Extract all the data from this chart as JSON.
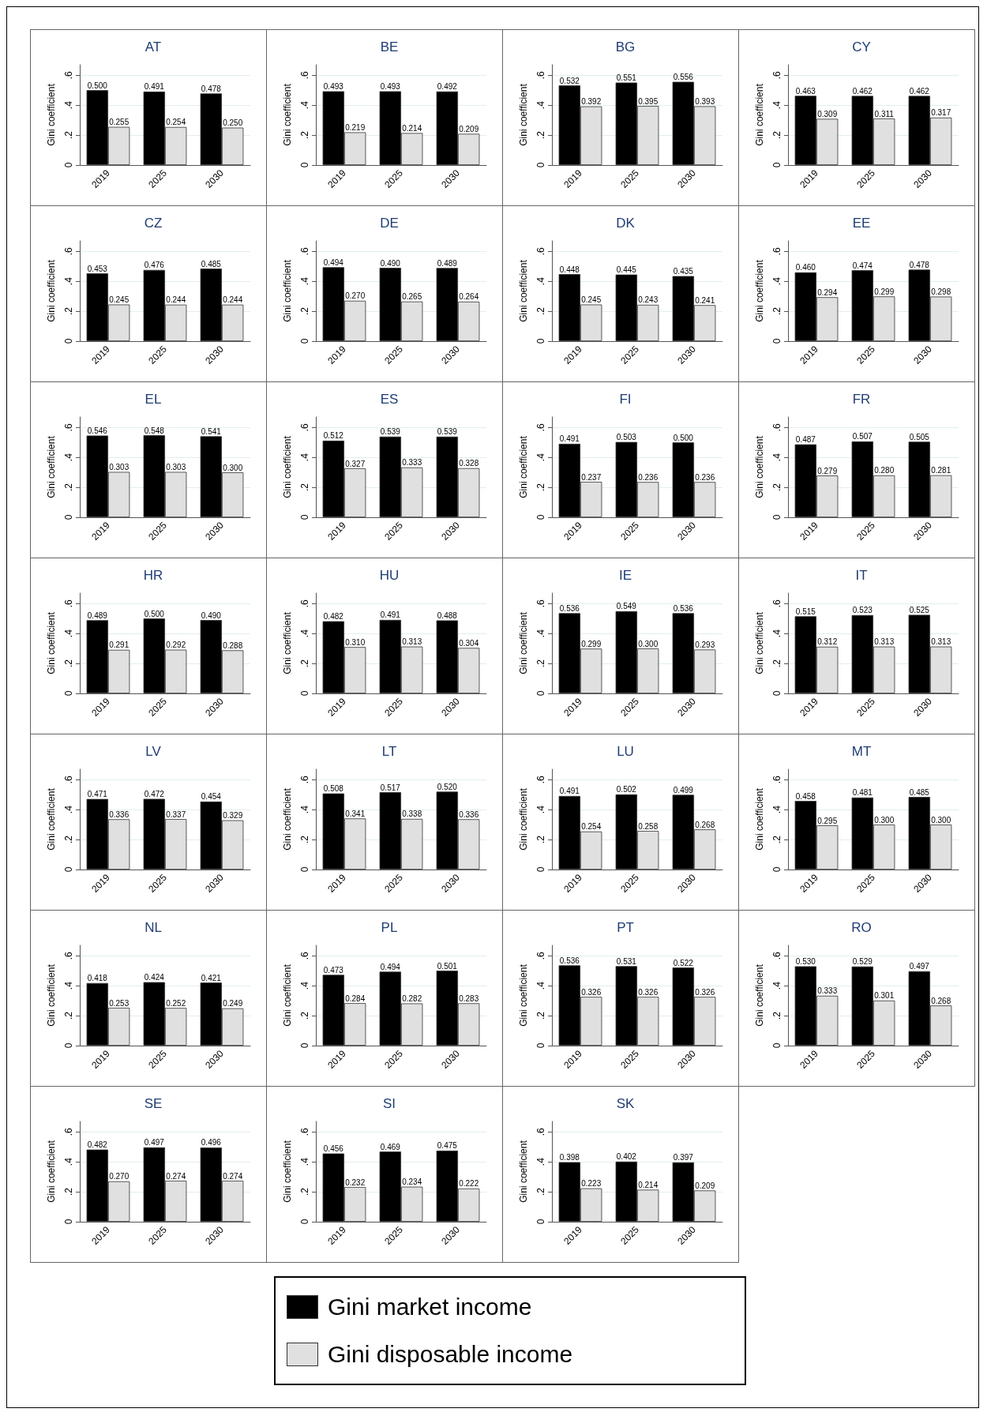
{
  "chart_data": [
    {
      "type": "bar",
      "title": "AT",
      "ylabel": "Gini coefficient",
      "categories": [
        "2019",
        "2025",
        "2030"
      ],
      "ylim": [
        0,
        0.67
      ],
      "yticks": [
        {
          "value": 0,
          "label": "0"
        },
        {
          "value": 0.2,
          "label": ".2"
        },
        {
          "value": 0.4,
          "label": ".4"
        },
        {
          "value": 0.6,
          "label": ".6"
        }
      ],
      "grid": "y",
      "series": [
        {
          "color": "#000000",
          "values": [
            0.5,
            0.491,
            0.478
          ],
          "value_labels": [
            "0.500",
            "0.491",
            "0.478"
          ]
        },
        {
          "color": "#e0e0e0",
          "values": [
            0.255,
            0.254,
            0.25
          ],
          "value_labels": [
            "0.255",
            "0.254",
            "0.250"
          ]
        }
      ]
    },
    {
      "type": "bar",
      "title": "BE",
      "ylabel": "Gini coefficient",
      "categories": [
        "2019",
        "2025",
        "2030"
      ],
      "ylim": [
        0,
        0.67
      ],
      "yticks": [
        {
          "value": 0,
          "label": "0"
        },
        {
          "value": 0.2,
          "label": ".2"
        },
        {
          "value": 0.4,
          "label": ".4"
        },
        {
          "value": 0.6,
          "label": ".6"
        }
      ],
      "grid": "y",
      "series": [
        {
          "color": "#000000",
          "values": [
            0.493,
            0.493,
            0.492
          ],
          "value_labels": [
            "0.493",
            "0.493",
            "0.492"
          ]
        },
        {
          "color": "#e0e0e0",
          "values": [
            0.219,
            0.214,
            0.209
          ],
          "value_labels": [
            "0.219",
            "0.214",
            "0.209"
          ]
        }
      ]
    },
    {
      "type": "bar",
      "title": "BG",
      "ylabel": "Gini coefficient",
      "categories": [
        "2019",
        "2025",
        "2030"
      ],
      "ylim": [
        0,
        0.67
      ],
      "yticks": [
        {
          "value": 0,
          "label": "0"
        },
        {
          "value": 0.2,
          "label": ".2"
        },
        {
          "value": 0.4,
          "label": ".4"
        },
        {
          "value": 0.6,
          "label": ".6"
        }
      ],
      "grid": "y",
      "series": [
        {
          "color": "#000000",
          "values": [
            0.532,
            0.551,
            0.556
          ],
          "value_labels": [
            "0.532",
            "0.551",
            "0.556"
          ]
        },
        {
          "color": "#e0e0e0",
          "values": [
            0.392,
            0.395,
            0.393
          ],
          "value_labels": [
            "0.392",
            "0.395",
            "0.393"
          ]
        }
      ]
    },
    {
      "type": "bar",
      "title": "CY",
      "ylabel": "Gini coefficient",
      "categories": [
        "2019",
        "2025",
        "2030"
      ],
      "ylim": [
        0,
        0.67
      ],
      "yticks": [
        {
          "value": 0,
          "label": "0"
        },
        {
          "value": 0.2,
          "label": ".2"
        },
        {
          "value": 0.4,
          "label": ".4"
        },
        {
          "value": 0.6,
          "label": ".6"
        }
      ],
      "grid": "y",
      "series": [
        {
          "color": "#000000",
          "values": [
            0.463,
            0.462,
            0.462
          ],
          "value_labels": [
            "0.463",
            "0.462",
            "0.462"
          ]
        },
        {
          "color": "#e0e0e0",
          "values": [
            0.309,
            0.311,
            0.317
          ],
          "value_labels": [
            "0.309",
            "0.311",
            "0.317"
          ]
        }
      ]
    },
    {
      "type": "bar",
      "title": "CZ",
      "ylabel": "Gini coefficient",
      "categories": [
        "2019",
        "2025",
        "2030"
      ],
      "ylim": [
        0,
        0.67
      ],
      "yticks": [
        {
          "value": 0,
          "label": "0"
        },
        {
          "value": 0.2,
          "label": ".2"
        },
        {
          "value": 0.4,
          "label": ".4"
        },
        {
          "value": 0.6,
          "label": ".6"
        }
      ],
      "grid": "y",
      "series": [
        {
          "color": "#000000",
          "values": [
            0.453,
            0.476,
            0.485
          ],
          "value_labels": [
            "0.453",
            "0.476",
            "0.485"
          ]
        },
        {
          "color": "#e0e0e0",
          "values": [
            0.245,
            0.244,
            0.244
          ],
          "value_labels": [
            "0.245",
            "0.244",
            "0.244"
          ]
        }
      ]
    },
    {
      "type": "bar",
      "title": "DE",
      "ylabel": "Gini coefficient",
      "categories": [
        "2019",
        "2025",
        "2030"
      ],
      "ylim": [
        0,
        0.67
      ],
      "yticks": [
        {
          "value": 0,
          "label": "0"
        },
        {
          "value": 0.2,
          "label": ".2"
        },
        {
          "value": 0.4,
          "label": ".4"
        },
        {
          "value": 0.6,
          "label": ".6"
        }
      ],
      "grid": "y",
      "series": [
        {
          "color": "#000000",
          "values": [
            0.494,
            0.49,
            0.489
          ],
          "value_labels": [
            "0.494",
            "0.490",
            "0.489"
          ]
        },
        {
          "color": "#e0e0e0",
          "values": [
            0.27,
            0.265,
            0.264
          ],
          "value_labels": [
            "0.270",
            "0.265",
            "0.264"
          ]
        }
      ]
    },
    {
      "type": "bar",
      "title": "DK",
      "ylabel": "Gini coefficient",
      "categories": [
        "2019",
        "2025",
        "2030"
      ],
      "ylim": [
        0,
        0.67
      ],
      "yticks": [
        {
          "value": 0,
          "label": "0"
        },
        {
          "value": 0.2,
          "label": ".2"
        },
        {
          "value": 0.4,
          "label": ".4"
        },
        {
          "value": 0.6,
          "label": ".6"
        }
      ],
      "grid": "y",
      "series": [
        {
          "color": "#000000",
          "values": [
            0.448,
            0.445,
            0.435
          ],
          "value_labels": [
            "0.448",
            "0.445",
            "0.435"
          ]
        },
        {
          "color": "#e0e0e0",
          "values": [
            0.245,
            0.243,
            0.241
          ],
          "value_labels": [
            "0.245",
            "0.243",
            "0.241"
          ]
        }
      ]
    },
    {
      "type": "bar",
      "title": "EE",
      "ylabel": "Gini coefficient",
      "categories": [
        "2019",
        "2025",
        "2030"
      ],
      "ylim": [
        0,
        0.67
      ],
      "yticks": [
        {
          "value": 0,
          "label": "0"
        },
        {
          "value": 0.2,
          "label": ".2"
        },
        {
          "value": 0.4,
          "label": ".4"
        },
        {
          "value": 0.6,
          "label": ".6"
        }
      ],
      "grid": "y",
      "series": [
        {
          "color": "#000000",
          "values": [
            0.46,
            0.474,
            0.478
          ],
          "value_labels": [
            "0.460",
            "0.474",
            "0.478"
          ]
        },
        {
          "color": "#e0e0e0",
          "values": [
            0.294,
            0.299,
            0.298
          ],
          "value_labels": [
            "0.294",
            "0.299",
            "0.298"
          ]
        }
      ]
    },
    {
      "type": "bar",
      "title": "EL",
      "ylabel": "Gini coefficient",
      "categories": [
        "2019",
        "2025",
        "2030"
      ],
      "ylim": [
        0,
        0.67
      ],
      "yticks": [
        {
          "value": 0,
          "label": "0"
        },
        {
          "value": 0.2,
          "label": ".2"
        },
        {
          "value": 0.4,
          "label": ".4"
        },
        {
          "value": 0.6,
          "label": ".6"
        }
      ],
      "grid": "y",
      "series": [
        {
          "color": "#000000",
          "values": [
            0.546,
            0.548,
            0.541
          ],
          "value_labels": [
            "0.546",
            "0.548",
            "0.541"
          ]
        },
        {
          "color": "#e0e0e0",
          "values": [
            0.303,
            0.303,
            0.3
          ],
          "value_labels": [
            "0.303",
            "0.303",
            "0.300"
          ]
        }
      ]
    },
    {
      "type": "bar",
      "title": "ES",
      "ylabel": "Gini coefficient",
      "categories": [
        "2019",
        "2025",
        "2030"
      ],
      "ylim": [
        0,
        0.67
      ],
      "yticks": [
        {
          "value": 0,
          "label": "0"
        },
        {
          "value": 0.2,
          "label": ".2"
        },
        {
          "value": 0.4,
          "label": ".4"
        },
        {
          "value": 0.6,
          "label": ".6"
        }
      ],
      "grid": "y",
      "series": [
        {
          "color": "#000000",
          "values": [
            0.512,
            0.539,
            0.539
          ],
          "value_labels": [
            "0.512",
            "0.539",
            "0.539"
          ]
        },
        {
          "color": "#e0e0e0",
          "values": [
            0.327,
            0.333,
            0.328
          ],
          "value_labels": [
            "0.327",
            "0.333",
            "0.328"
          ]
        }
      ]
    },
    {
      "type": "bar",
      "title": "FI",
      "ylabel": "Gini coefficient",
      "categories": [
        "2019",
        "2025",
        "2030"
      ],
      "ylim": [
        0,
        0.67
      ],
      "yticks": [
        {
          "value": 0,
          "label": "0"
        },
        {
          "value": 0.2,
          "label": ".2"
        },
        {
          "value": 0.4,
          "label": ".4"
        },
        {
          "value": 0.6,
          "label": ".6"
        }
      ],
      "grid": "y",
      "series": [
        {
          "color": "#000000",
          "values": [
            0.491,
            0.503,
            0.5
          ],
          "value_labels": [
            "0.491",
            "0.503",
            "0.500"
          ]
        },
        {
          "color": "#e0e0e0",
          "values": [
            0.237,
            0.236,
            0.236
          ],
          "value_labels": [
            "0.237",
            "0.236",
            "0.236"
          ]
        }
      ]
    },
    {
      "type": "bar",
      "title": "FR",
      "ylabel": "Gini coefficient",
      "categories": [
        "2019",
        "2025",
        "2030"
      ],
      "ylim": [
        0,
        0.67
      ],
      "yticks": [
        {
          "value": 0,
          "label": "0"
        },
        {
          "value": 0.2,
          "label": ".2"
        },
        {
          "value": 0.4,
          "label": ".4"
        },
        {
          "value": 0.6,
          "label": ".6"
        }
      ],
      "grid": "y",
      "series": [
        {
          "color": "#000000",
          "values": [
            0.487,
            0.507,
            0.505
          ],
          "value_labels": [
            "0.487",
            "0.507",
            "0.505"
          ]
        },
        {
          "color": "#e0e0e0",
          "values": [
            0.279,
            0.28,
            0.281
          ],
          "value_labels": [
            "0.279",
            "0.280",
            "0.281"
          ]
        }
      ]
    },
    {
      "type": "bar",
      "title": "HR",
      "ylabel": "Gini coefficient",
      "categories": [
        "2019",
        "2025",
        "2030"
      ],
      "ylim": [
        0,
        0.67
      ],
      "yticks": [
        {
          "value": 0,
          "label": "0"
        },
        {
          "value": 0.2,
          "label": ".2"
        },
        {
          "value": 0.4,
          "label": ".4"
        },
        {
          "value": 0.6,
          "label": ".6"
        }
      ],
      "grid": "y",
      "series": [
        {
          "color": "#000000",
          "values": [
            0.489,
            0.5,
            0.49
          ],
          "value_labels": [
            "0.489",
            "0.500",
            "0.490"
          ]
        },
        {
          "color": "#e0e0e0",
          "values": [
            0.291,
            0.292,
            0.288
          ],
          "value_labels": [
            "0.291",
            "0.292",
            "0.288"
          ]
        }
      ]
    },
    {
      "type": "bar",
      "title": "HU",
      "ylabel": "Gini coefficient",
      "categories": [
        "2019",
        "2025",
        "2030"
      ],
      "ylim": [
        0,
        0.67
      ],
      "yticks": [
        {
          "value": 0,
          "label": "0"
        },
        {
          "value": 0.2,
          "label": ".2"
        },
        {
          "value": 0.4,
          "label": ".4"
        },
        {
          "value": 0.6,
          "label": ".6"
        }
      ],
      "grid": "y",
      "series": [
        {
          "color": "#000000",
          "values": [
            0.482,
            0.491,
            0.488
          ],
          "value_labels": [
            "0.482",
            "0.491",
            "0.488"
          ]
        },
        {
          "color": "#e0e0e0",
          "values": [
            0.31,
            0.313,
            0.304
          ],
          "value_labels": [
            "0.310",
            "0.313",
            "0.304"
          ]
        }
      ]
    },
    {
      "type": "bar",
      "title": "IE",
      "ylabel": "Gini coefficient",
      "categories": [
        "2019",
        "2025",
        "2030"
      ],
      "ylim": [
        0,
        0.67
      ],
      "yticks": [
        {
          "value": 0,
          "label": "0"
        },
        {
          "value": 0.2,
          "label": ".2"
        },
        {
          "value": 0.4,
          "label": ".4"
        },
        {
          "value": 0.6,
          "label": ".6"
        }
      ],
      "grid": "y",
      "series": [
        {
          "color": "#000000",
          "values": [
            0.536,
            0.549,
            0.536
          ],
          "value_labels": [
            "0.536",
            "0.549",
            "0.536"
          ]
        },
        {
          "color": "#e0e0e0",
          "values": [
            0.299,
            0.3,
            0.293
          ],
          "value_labels": [
            "0.299",
            "0.300",
            "0.293"
          ]
        }
      ]
    },
    {
      "type": "bar",
      "title": "IT",
      "ylabel": "Gini coefficient",
      "categories": [
        "2019",
        "2025",
        "2030"
      ],
      "ylim": [
        0,
        0.67
      ],
      "yticks": [
        {
          "value": 0,
          "label": "0"
        },
        {
          "value": 0.2,
          "label": ".2"
        },
        {
          "value": 0.4,
          "label": ".4"
        },
        {
          "value": 0.6,
          "label": ".6"
        }
      ],
      "grid": "y",
      "series": [
        {
          "color": "#000000",
          "values": [
            0.515,
            0.523,
            0.525
          ],
          "value_labels": [
            "0.515",
            "0.523",
            "0.525"
          ]
        },
        {
          "color": "#e0e0e0",
          "values": [
            0.312,
            0.313,
            0.313
          ],
          "value_labels": [
            "0.312",
            "0.313",
            "0.313"
          ]
        }
      ]
    },
    {
      "type": "bar",
      "title": "LV",
      "ylabel": "Gini coefficient",
      "categories": [
        "2019",
        "2025",
        "2030"
      ],
      "ylim": [
        0,
        0.67
      ],
      "yticks": [
        {
          "value": 0,
          "label": "0"
        },
        {
          "value": 0.2,
          "label": ".2"
        },
        {
          "value": 0.4,
          "label": ".4"
        },
        {
          "value": 0.6,
          "label": ".6"
        }
      ],
      "grid": "y",
      "series": [
        {
          "color": "#000000",
          "values": [
            0.471,
            0.472,
            0.454
          ],
          "value_labels": [
            "0.471",
            "0.472",
            "0.454"
          ]
        },
        {
          "color": "#e0e0e0",
          "values": [
            0.336,
            0.337,
            0.329
          ],
          "value_labels": [
            "0.336",
            "0.337",
            "0.329"
          ]
        }
      ]
    },
    {
      "type": "bar",
      "title": "LT",
      "ylabel": "Gini coefficient",
      "categories": [
        "2019",
        "2025",
        "2030"
      ],
      "ylim": [
        0,
        0.67
      ],
      "yticks": [
        {
          "value": 0,
          "label": "0"
        },
        {
          "value": 0.2,
          "label": ".2"
        },
        {
          "value": 0.4,
          "label": ".4"
        },
        {
          "value": 0.6,
          "label": ".6"
        }
      ],
      "grid": "y",
      "series": [
        {
          "color": "#000000",
          "values": [
            0.508,
            0.517,
            0.52
          ],
          "value_labels": [
            "0.508",
            "0.517",
            "0.520"
          ]
        },
        {
          "color": "#e0e0e0",
          "values": [
            0.341,
            0.338,
            0.336
          ],
          "value_labels": [
            "0.341",
            "0.338",
            "0.336"
          ]
        }
      ]
    },
    {
      "type": "bar",
      "title": "LU",
      "ylabel": "Gini coefficient",
      "categories": [
        "2019",
        "2025",
        "2030"
      ],
      "ylim": [
        0,
        0.67
      ],
      "yticks": [
        {
          "value": 0,
          "label": "0"
        },
        {
          "value": 0.2,
          "label": ".2"
        },
        {
          "value": 0.4,
          "label": ".4"
        },
        {
          "value": 0.6,
          "label": ".6"
        }
      ],
      "grid": "y",
      "series": [
        {
          "color": "#000000",
          "values": [
            0.491,
            0.502,
            0.499
          ],
          "value_labels": [
            "0.491",
            "0.502",
            "0.499"
          ]
        },
        {
          "color": "#e0e0e0",
          "values": [
            0.254,
            0.258,
            0.268
          ],
          "value_labels": [
            "0.254",
            "0.258",
            "0.268"
          ]
        }
      ]
    },
    {
      "type": "bar",
      "title": "MT",
      "ylabel": "Gini coefficient",
      "categories": [
        "2019",
        "2025",
        "2030"
      ],
      "ylim": [
        0,
        0.67
      ],
      "yticks": [
        {
          "value": 0,
          "label": "0"
        },
        {
          "value": 0.2,
          "label": ".2"
        },
        {
          "value": 0.4,
          "label": ".4"
        },
        {
          "value": 0.6,
          "label": ".6"
        }
      ],
      "grid": "y",
      "series": [
        {
          "color": "#000000",
          "values": [
            0.458,
            0.481,
            0.485
          ],
          "value_labels": [
            "0.458",
            "0.481",
            "0.485"
          ]
        },
        {
          "color": "#e0e0e0",
          "values": [
            0.295,
            0.3,
            0.3
          ],
          "value_labels": [
            "0.295",
            "0.300",
            "0.300"
          ]
        }
      ]
    },
    {
      "type": "bar",
      "title": "NL",
      "ylabel": "Gini coefficient",
      "categories": [
        "2019",
        "2025",
        "2030"
      ],
      "ylim": [
        0,
        0.67
      ],
      "yticks": [
        {
          "value": 0,
          "label": "0"
        },
        {
          "value": 0.2,
          "label": ".2"
        },
        {
          "value": 0.4,
          "label": ".4"
        },
        {
          "value": 0.6,
          "label": ".6"
        }
      ],
      "grid": "y",
      "series": [
        {
          "color": "#000000",
          "values": [
            0.418,
            0.424,
            0.421
          ],
          "value_labels": [
            "0.418",
            "0.424",
            "0.421"
          ]
        },
        {
          "color": "#e0e0e0",
          "values": [
            0.253,
            0.252,
            0.249
          ],
          "value_labels": [
            "0.253",
            "0.252",
            "0.249"
          ]
        }
      ]
    },
    {
      "type": "bar",
      "title": "PL",
      "ylabel": "Gini coefficient",
      "categories": [
        "2019",
        "2025",
        "2030"
      ],
      "ylim": [
        0,
        0.67
      ],
      "yticks": [
        {
          "value": 0,
          "label": "0"
        },
        {
          "value": 0.2,
          "label": ".2"
        },
        {
          "value": 0.4,
          "label": ".4"
        },
        {
          "value": 0.6,
          "label": ".6"
        }
      ],
      "grid": "y",
      "series": [
        {
          "color": "#000000",
          "values": [
            0.473,
            0.494,
            0.501
          ],
          "value_labels": [
            "0.473",
            "0.494",
            "0.501"
          ]
        },
        {
          "color": "#e0e0e0",
          "values": [
            0.284,
            0.282,
            0.283
          ],
          "value_labels": [
            "0.284",
            "0.282",
            "0.283"
          ]
        }
      ]
    },
    {
      "type": "bar",
      "title": "PT",
      "ylabel": "Gini coefficient",
      "categories": [
        "2019",
        "2025",
        "2030"
      ],
      "ylim": [
        0,
        0.67
      ],
      "yticks": [
        {
          "value": 0,
          "label": "0"
        },
        {
          "value": 0.2,
          "label": ".2"
        },
        {
          "value": 0.4,
          "label": ".4"
        },
        {
          "value": 0.6,
          "label": ".6"
        }
      ],
      "grid": "y",
      "series": [
        {
          "color": "#000000",
          "values": [
            0.536,
            0.531,
            0.522
          ],
          "value_labels": [
            "0.536",
            "0.531",
            "0.522"
          ]
        },
        {
          "color": "#e0e0e0",
          "values": [
            0.326,
            0.326,
            0.326
          ],
          "value_labels": [
            "0.326",
            "0.326",
            "0.326"
          ]
        }
      ]
    },
    {
      "type": "bar",
      "title": "RO",
      "ylabel": "Gini coefficient",
      "categories": [
        "2019",
        "2025",
        "2030"
      ],
      "ylim": [
        0,
        0.67
      ],
      "yticks": [
        {
          "value": 0,
          "label": "0"
        },
        {
          "value": 0.2,
          "label": ".2"
        },
        {
          "value": 0.4,
          "label": ".4"
        },
        {
          "value": 0.6,
          "label": ".6"
        }
      ],
      "grid": "y",
      "series": [
        {
          "color": "#000000",
          "values": [
            0.53,
            0.529,
            0.497
          ],
          "value_labels": [
            "0.530",
            "0.529",
            "0.497"
          ]
        },
        {
          "color": "#e0e0e0",
          "values": [
            0.333,
            0.301,
            0.268
          ],
          "value_labels": [
            "0.333",
            "0.301",
            "0.268"
          ]
        }
      ]
    },
    {
      "type": "bar",
      "title": "SE",
      "ylabel": "Gini coefficient",
      "categories": [
        "2019",
        "2025",
        "2030"
      ],
      "ylim": [
        0,
        0.67
      ],
      "yticks": [
        {
          "value": 0,
          "label": "0"
        },
        {
          "value": 0.2,
          "label": ".2"
        },
        {
          "value": 0.4,
          "label": ".4"
        },
        {
          "value": 0.6,
          "label": ".6"
        }
      ],
      "grid": "y",
      "series": [
        {
          "color": "#000000",
          "values": [
            0.482,
            0.497,
            0.496
          ],
          "value_labels": [
            "0.482",
            "0.497",
            "0.496"
          ]
        },
        {
          "color": "#e0e0e0",
          "values": [
            0.27,
            0.274,
            0.274
          ],
          "value_labels": [
            "0.270",
            "0.274",
            "0.274"
          ]
        }
      ]
    },
    {
      "type": "bar",
      "title": "SI",
      "ylabel": "Gini coefficient",
      "categories": [
        "2019",
        "2025",
        "2030"
      ],
      "ylim": [
        0,
        0.67
      ],
      "yticks": [
        {
          "value": 0,
          "label": "0"
        },
        {
          "value": 0.2,
          "label": ".2"
        },
        {
          "value": 0.4,
          "label": ".4"
        },
        {
          "value": 0.6,
          "label": ".6"
        }
      ],
      "grid": "y",
      "series": [
        {
          "color": "#000000",
          "values": [
            0.456,
            0.469,
            0.475
          ],
          "value_labels": [
            "0.456",
            "0.469",
            "0.475"
          ]
        },
        {
          "color": "#e0e0e0",
          "values": [
            0.232,
            0.234,
            0.222
          ],
          "value_labels": [
            "0.232",
            "0.234",
            "0.222"
          ]
        }
      ]
    },
    {
      "type": "bar",
      "title": "SK",
      "ylabel": "Gini coefficient",
      "categories": [
        "2019",
        "2025",
        "2030"
      ],
      "ylim": [
        0,
        0.67
      ],
      "yticks": [
        {
          "value": 0,
          "label": "0"
        },
        {
          "value": 0.2,
          "label": ".2"
        },
        {
          "value": 0.4,
          "label": ".4"
        },
        {
          "value": 0.6,
          "label": ".6"
        }
      ],
      "grid": "y",
      "legend": "bottom",
      "series": [
        {
          "name": "Gini market income",
          "color": "#000000",
          "values": [
            0.398,
            0.402,
            0.397
          ],
          "value_labels": [
            "0.398",
            "0.402",
            "0.397"
          ]
        },
        {
          "name": "Gini disposable income",
          "color": "#e0e0e0",
          "values": [
            0.223,
            0.214,
            0.209
          ],
          "value_labels": [
            "0.223",
            "0.214",
            "0.209"
          ]
        }
      ]
    }
  ]
}
